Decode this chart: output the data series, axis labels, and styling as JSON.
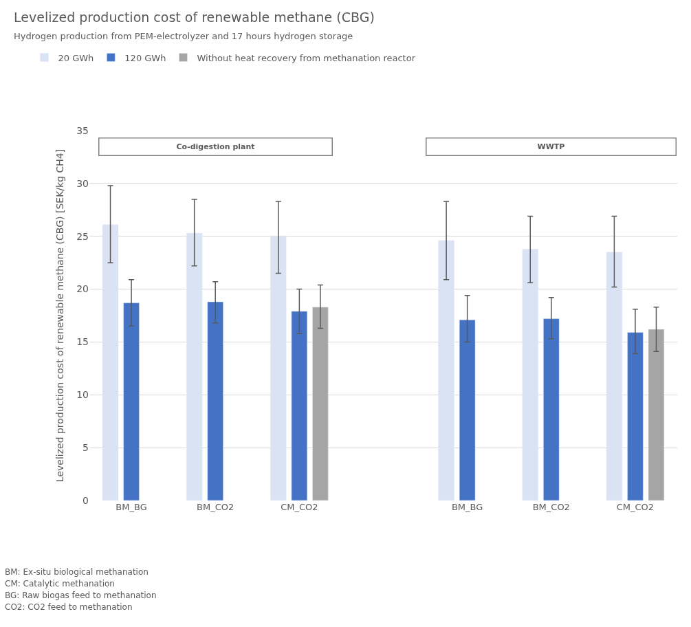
{
  "chart_data": {
    "type": "bar",
    "title": "Levelized production cost of renewable methane (CBG)",
    "subtitle": "Hydrogen production from PEM-electrolyzer and 17 hours hydrogen storage",
    "ylabel": "Levelized production cost of renewable methane (CBG) [SEK/kg CH4]",
    "categories": [
      "BM_BG",
      "BM_CO2",
      "CM_CO2",
      null,
      "BM_BG",
      "BM_CO2",
      "CM_CO2"
    ],
    "series": [
      {
        "name": "20 GWh",
        "color": "#dae3f3",
        "values": [
          26.1,
          25.3,
          25.0,
          null,
          24.6,
          23.8,
          23.5
        ],
        "errors": [
          [
            22.5,
            29.8
          ],
          [
            22.2,
            28.5
          ],
          [
            21.5,
            28.3
          ],
          null,
          [
            20.9,
            28.3
          ],
          [
            20.6,
            26.9
          ],
          [
            20.2,
            26.9
          ]
        ]
      },
      {
        "name": "120 GWh",
        "color": "#4472c4",
        "values": [
          18.7,
          18.8,
          17.9,
          null,
          17.1,
          17.2,
          15.9
        ],
        "errors": [
          [
            16.5,
            20.9
          ],
          [
            16.8,
            20.7
          ],
          [
            15.8,
            20.0
          ],
          null,
          [
            15.0,
            19.4
          ],
          [
            15.3,
            19.2
          ],
          [
            13.9,
            18.1
          ]
        ]
      },
      {
        "name": "Without heat recovery from methanation reactor",
        "color": "#a5a5a5",
        "values": [
          null,
          null,
          18.3,
          null,
          null,
          null,
          16.2
        ],
        "errors": [
          null,
          null,
          [
            16.3,
            20.4
          ],
          null,
          null,
          null,
          [
            14.1,
            18.3
          ]
        ]
      }
    ],
    "ylim": [
      0,
      35
    ],
    "yticks": [
      0,
      5,
      10,
      15,
      20,
      25,
      30,
      35
    ],
    "grid": "y",
    "legend": "top left",
    "annotations": [
      "Co-digestion plant",
      "WWTP",
      "BM: Ex-situ biological methanation",
      "CM: Catalytic methanation",
      "BG: Raw biogas feed to methanation",
      "CO2: CO2 feed to methanation"
    ]
  }
}
